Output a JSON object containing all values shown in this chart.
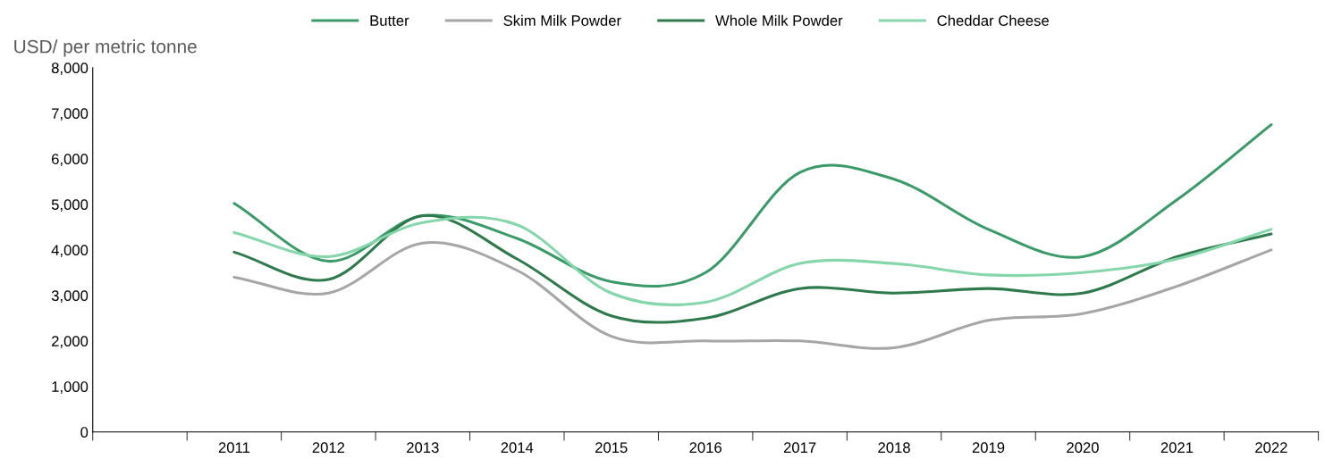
{
  "chart_data": {
    "type": "line",
    "ylabel": "USD/ per metric tonne",
    "categories": [
      null,
      "2011",
      "2012",
      "2013",
      "2014",
      "2015",
      "2016",
      "2017",
      "2018",
      "2019",
      "2020",
      "2021",
      "2022"
    ],
    "series": [
      {
        "name": "Butter",
        "color": "#3a9a68",
        "values": [
          null,
          5020,
          3750,
          4750,
          4250,
          3300,
          3500,
          5700,
          5550,
          4450,
          3850,
          5100,
          6750
        ]
      },
      {
        "name": "Skim Milk Powder",
        "color": "#a6a6a6",
        "values": [
          null,
          3400,
          3050,
          4150,
          3550,
          2100,
          2000,
          2000,
          1850,
          2450,
          2600,
          3200,
          4000
        ]
      },
      {
        "name": "Whole Milk Powder",
        "color": "#2e7a4c",
        "values": [
          null,
          3950,
          3350,
          4750,
          3800,
          2550,
          2500,
          3150,
          3050,
          3150,
          3050,
          3850,
          4350
        ]
      },
      {
        "name": "Cheddar Cheese",
        "color": "#85d6ab",
        "values": [
          null,
          4380,
          3850,
          4600,
          4550,
          3050,
          2850,
          3700,
          3700,
          3450,
          3500,
          3800,
          4450
        ]
      }
    ],
    "ylim": [
      0,
      8000
    ],
    "yticks": [
      0,
      {
        "value": 1000,
        "label": "1,000"
      },
      {
        "value": 2000,
        "label": "2,000"
      },
      {
        "value": 3000,
        "label": "3,000"
      },
      {
        "value": 4000,
        "label": "4,000"
      },
      {
        "value": 5000,
        "label": "5,000"
      },
      {
        "value": 6000,
        "label": "6,000"
      },
      {
        "value": 7000,
        "label": "7,000"
      },
      {
        "value": 8000,
        "label": "8,000"
      }
    ],
    "grid": false,
    "legend": "top",
    "marker": "none",
    "line_style": "solid"
  }
}
